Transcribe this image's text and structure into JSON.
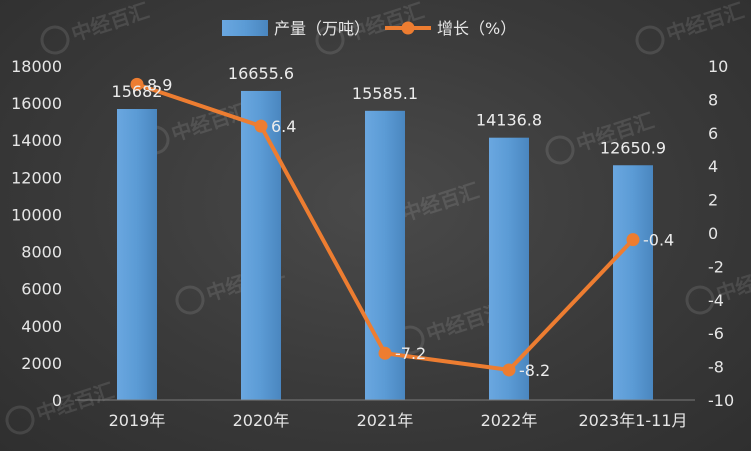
{
  "chart_data": {
    "type": "bar+line",
    "categories": [
      "2019年",
      "2020年",
      "2021年",
      "2022年",
      "2023年1-11月"
    ],
    "series": [
      {
        "name": "产量（万吨）",
        "type": "bar",
        "axis": "left",
        "values": [
          15682,
          16655.6,
          15585.1,
          14136.8,
          12650.9
        ],
        "labels": [
          "15682",
          "16655.6",
          "15585.1",
          "14136.8",
          "12650.9"
        ],
        "color": "#5b9bd5"
      },
      {
        "name": "增长（%）",
        "type": "line",
        "axis": "right",
        "values": [
          8.9,
          6.4,
          -7.2,
          -8.2,
          -0.4
        ],
        "labels": [
          "8.9",
          "6.4",
          "-7.2",
          "-8.2",
          "-0.4"
        ],
        "color": "#ed7d31"
      }
    ],
    "y_left": {
      "min": 0,
      "max": 18000,
      "step": 2000
    },
    "y_right": {
      "min": -10,
      "max": 10,
      "step": 2
    },
    "legend_position": "top",
    "grid": false,
    "watermark": "中经百汇"
  }
}
